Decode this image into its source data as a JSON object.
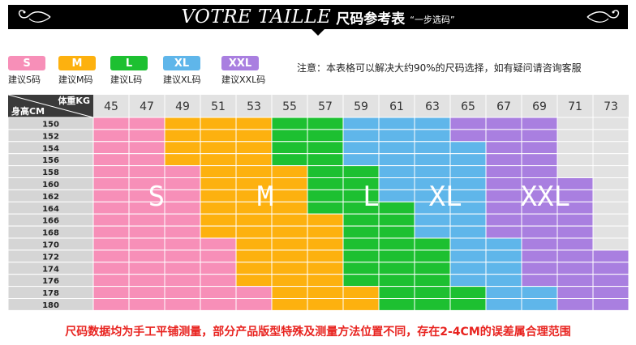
{
  "header": {
    "title_en": "VOTRE TAILLE",
    "title_cn": "尺码参考表",
    "subtitle": "“一步选码”"
  },
  "legend": [
    {
      "size": "S",
      "label": "建议S码",
      "color": "#f78fb8"
    },
    {
      "size": "M",
      "label": "建议M码",
      "color": "#fdb10f"
    },
    {
      "size": "L",
      "label": "建议L码",
      "color": "#1dc031"
    },
    {
      "size": "XL",
      "label": "建议XL码",
      "color": "#5fb6ea"
    },
    {
      "size": "XXL",
      "label": "建议XXL码",
      "color": "#a97fe0"
    }
  ],
  "note": "注意：本表格可以解决大约90%的尺码选择，如有疑问请咨询客服",
  "table": {
    "corner_weight": "体重KG",
    "corner_height": "身高CM",
    "weights": [
      "45",
      "47",
      "49",
      "51",
      "53",
      "55",
      "57",
      "59",
      "61",
      "63",
      "65",
      "67",
      "69",
      "71",
      "73"
    ],
    "heights": [
      "150",
      "152",
      "154",
      "156",
      "158",
      "160",
      "162",
      "164",
      "166",
      "168",
      "170",
      "172",
      "174",
      "176",
      "178",
      "180"
    ],
    "grid": [
      [
        1,
        1,
        2,
        2,
        2,
        3,
        3,
        4,
        4,
        4,
        5,
        5,
        5,
        0,
        0
      ],
      [
        1,
        1,
        2,
        2,
        2,
        3,
        3,
        4,
        4,
        4,
        5,
        5,
        5,
        0,
        0
      ],
      [
        1,
        1,
        2,
        2,
        2,
        3,
        3,
        4,
        4,
        4,
        4,
        5,
        5,
        0,
        0
      ],
      [
        1,
        1,
        2,
        2,
        2,
        3,
        3,
        4,
        4,
        4,
        4,
        5,
        5,
        0,
        0
      ],
      [
        1,
        1,
        1,
        2,
        2,
        2,
        3,
        3,
        4,
        4,
        4,
        5,
        5,
        0,
        0
      ],
      [
        1,
        1,
        1,
        2,
        2,
        2,
        3,
        3,
        4,
        4,
        4,
        5,
        5,
        5,
        0
      ],
      [
        1,
        1,
        1,
        2,
        2,
        2,
        3,
        3,
        4,
        4,
        4,
        5,
        5,
        5,
        0
      ],
      [
        1,
        1,
        1,
        2,
        2,
        2,
        3,
        3,
        3,
        4,
        4,
        5,
        5,
        5,
        0
      ],
      [
        1,
        1,
        1,
        2,
        2,
        2,
        2,
        3,
        3,
        4,
        4,
        5,
        5,
        5,
        0
      ],
      [
        1,
        1,
        1,
        2,
        2,
        2,
        2,
        3,
        3,
        4,
        4,
        5,
        5,
        5,
        0
      ],
      [
        1,
        1,
        1,
        1,
        2,
        2,
        2,
        3,
        3,
        3,
        4,
        4,
        5,
        5,
        0
      ],
      [
        1,
        1,
        1,
        1,
        2,
        2,
        2,
        3,
        3,
        3,
        4,
        4,
        5,
        5,
        5
      ],
      [
        1,
        1,
        1,
        1,
        2,
        2,
        2,
        3,
        3,
        3,
        4,
        4,
        5,
        5,
        5
      ],
      [
        1,
        1,
        1,
        1,
        2,
        2,
        2,
        3,
        3,
        3,
        4,
        4,
        5,
        5,
        5
      ],
      [
        1,
        1,
        1,
        1,
        1,
        2,
        2,
        2,
        3,
        3,
        3,
        4,
        4,
        5,
        5
      ],
      [
        1,
        1,
        1,
        1,
        1,
        2,
        2,
        2,
        3,
        3,
        3,
        4,
        4,
        5,
        5
      ]
    ],
    "overlay_labels": [
      "S",
      "M",
      "L",
      "XL",
      "XXL"
    ],
    "empty_color": "#e2e2e2",
    "header_color": "#e2e2e2",
    "height_col_color": "#d5d5d5"
  },
  "footer": "尺码数据均为手工平铺测量，部分产品版型特殊及测量方法位置不同，存在2-4CM的误差属合理范围"
}
